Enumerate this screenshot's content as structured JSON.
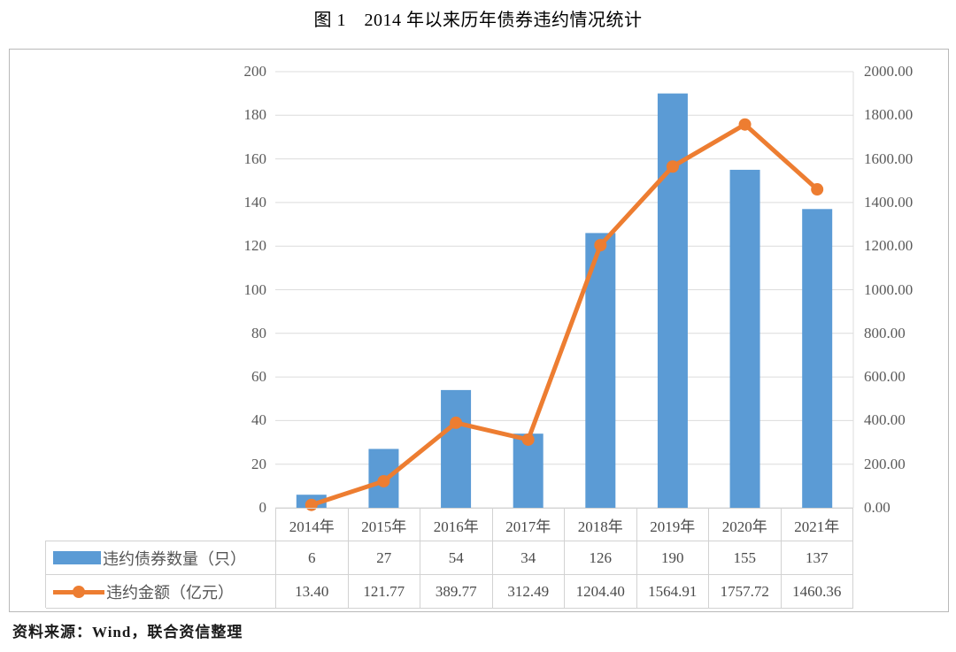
{
  "page": {
    "title": "图 1　2014 年以来历年债券违约情况统计",
    "source": "资料来源：Wind，联合资信整理"
  },
  "chart_data": {
    "type": "combo-bar-line",
    "title": "图 1　2014 年以来历年债券违约情况统计",
    "categories": [
      "2014年",
      "2015年",
      "2016年",
      "2017年",
      "2018年",
      "2019年",
      "2020年",
      "2021年"
    ],
    "series": [
      {
        "name": "违约债券数量（只）",
        "chart": "bar",
        "axis": "left",
        "color": "#5B9BD5",
        "values": [
          6,
          27,
          54,
          34,
          126,
          190,
          155,
          137
        ],
        "display": [
          "6",
          "27",
          "54",
          "34",
          "126",
          "190",
          "155",
          "137"
        ]
      },
      {
        "name": "违约金额（亿元）",
        "chart": "line",
        "axis": "right",
        "color": "#ED7D31",
        "values": [
          13.4,
          121.77,
          389.77,
          312.49,
          1204.4,
          1564.91,
          1757.72,
          1460.36
        ],
        "display": [
          "13.40",
          "121.77",
          "389.77",
          "312.49",
          "1204.40",
          "1564.91",
          "1757.72",
          "1460.36"
        ]
      }
    ],
    "left_axis": {
      "min": 0,
      "max": 200,
      "step": 20,
      "tick_labels": [
        "0",
        "20",
        "40",
        "60",
        "80",
        "100",
        "120",
        "140",
        "160",
        "180",
        "200"
      ]
    },
    "right_axis": {
      "min": 0,
      "max": 2000,
      "step": 200,
      "tick_labels": [
        "0.00",
        "200.00",
        "400.00",
        "600.00",
        "800.00",
        "1000.00",
        "1200.00",
        "1400.00",
        "1600.00",
        "1800.00",
        "2000.00"
      ]
    },
    "grid": "horizontal gridlines on",
    "gridline_color": "#dcdcdc",
    "legend_position": "data table below chart, legend keys at left of table rows"
  }
}
